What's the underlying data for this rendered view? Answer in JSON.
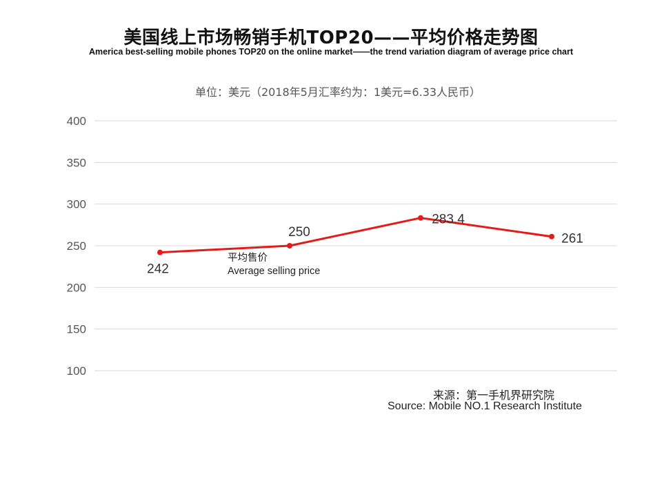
{
  "title_cn": "美国线上市场畅销手机TOP20——平均价格走势图",
  "title_en": "America best-selling mobile phones TOP20 on the online market——the trend variation diagram of average price chart",
  "unit_note": "单位：美元（2018年5月汇率约为：1美元=6.33人民币）",
  "source_cn": "来源：第一手机界研究院",
  "source_en": "Source: Mobile NO.1 Research Institute",
  "chart_data": {
    "type": "line",
    "title": "美国线上市场畅销手机TOP20——平均价格走势图",
    "xlabel": "",
    "ylabel": "",
    "ylim": [
      100,
      400
    ],
    "yticks": [
      100,
      150,
      200,
      250,
      300,
      350,
      400
    ],
    "grid": true,
    "series": [
      {
        "name_cn": "平均售价",
        "name_en": "Average selling price",
        "values": [
          242,
          250,
          283.4,
          261
        ],
        "labels": [
          "242",
          "250",
          "283.4",
          "261"
        ],
        "color": "#e31b1b"
      }
    ]
  }
}
